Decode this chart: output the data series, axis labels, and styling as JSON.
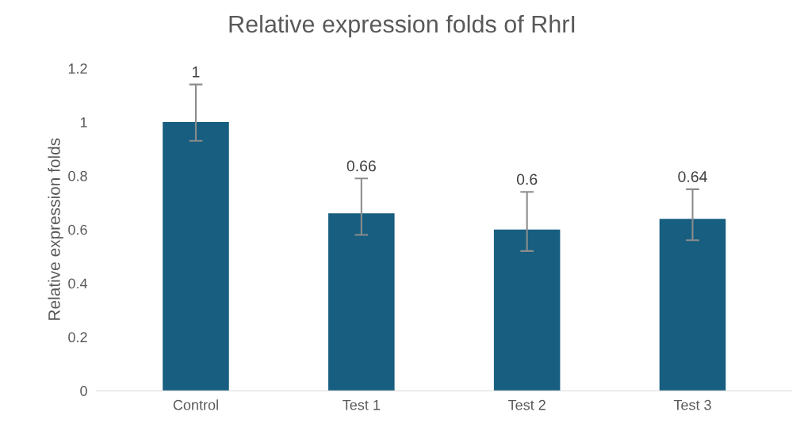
{
  "chart_data": {
    "type": "bar",
    "title": "Relative expression folds of RhrI",
    "ylabel": "Relative expression folds",
    "categories": [
      "Control",
      "Test 1",
      "Test 2",
      "Test 3"
    ],
    "values": [
      1,
      0.66,
      0.6,
      0.64
    ],
    "errors": [
      [
        0.93,
        1.14
      ],
      [
        0.58,
        0.79
      ],
      [
        0.52,
        0.74
      ],
      [
        0.56,
        0.75
      ]
    ],
    "color": "#175e80",
    "data_labels": true,
    "ylim": [
      0,
      1.2
    ],
    "yticks": [
      0,
      0.2,
      0.4,
      0.6,
      0.8,
      1,
      1.2
    ],
    "grid": false,
    "legend": false
  }
}
